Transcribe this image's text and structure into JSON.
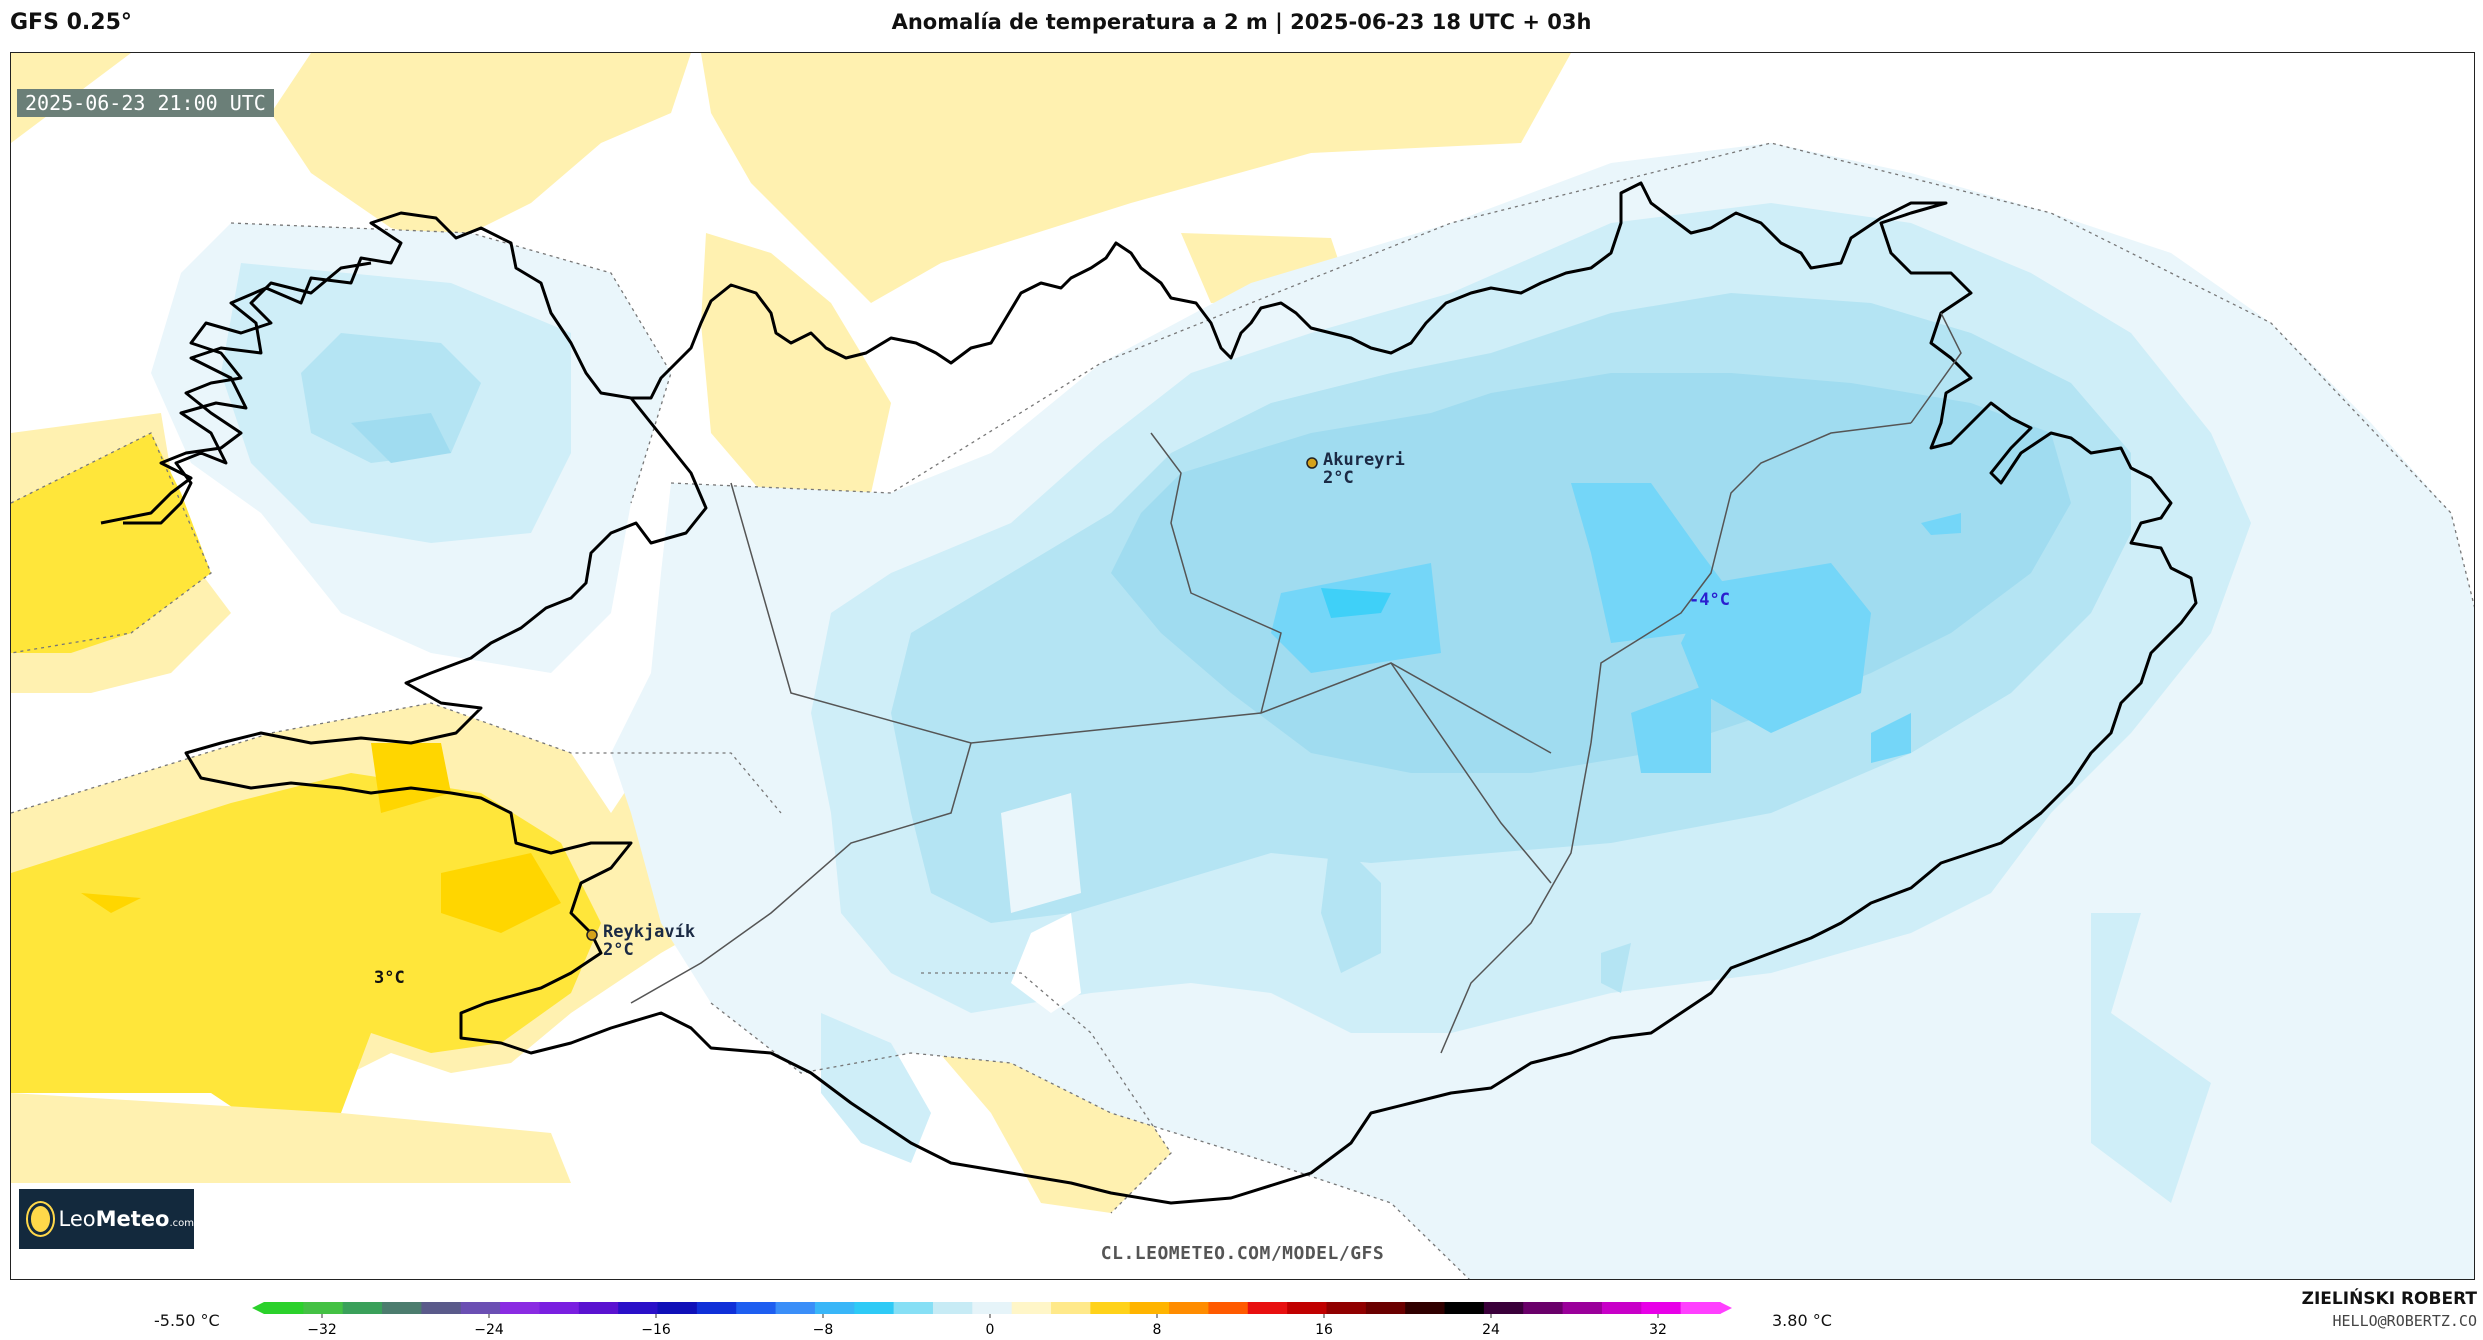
{
  "header": {
    "model": "GFS 0.25°",
    "title": "Anomalía de temperatura a 2 m | 2025-06-23 18 UTC + 03h"
  },
  "map": {
    "timestamp": "2025-06-23 21:00 UTC",
    "cities": [
      {
        "name": "Akureyri",
        "value": "2°C"
      },
      {
        "name": "Reykjavík",
        "value": "2°C"
      }
    ],
    "extremes": {
      "min_label": "-4°C",
      "max_label": "3°C"
    },
    "watermark": "CL.LEOMETEO.COM/MODEL/GFS",
    "logo": {
      "part1": "Leo",
      "part2": "Meteo",
      "suffix": ".com"
    }
  },
  "colorbar": {
    "min_label": "-5.50 °C",
    "max_label": "3.80 °C",
    "ticks": [
      "−32",
      "−24",
      "−16",
      "−8",
      "0",
      "8",
      "16",
      "24",
      "32"
    ],
    "colors": [
      "#2bd12b",
      "#44c144",
      "#3aa05a",
      "#4c7c6e",
      "#5a5a8a",
      "#6b4fb3",
      "#8a2be2",
      "#7a1fe0",
      "#5a12d0",
      "#2a10c8",
      "#1010b8",
      "#1030d8",
      "#1e5ef0",
      "#3a8ef8",
      "#39b6f8",
      "#2ecaf6",
      "#86dff5",
      "#c7ebf5",
      "#e6f4f9",
      "#fff6c8",
      "#ffe98a",
      "#ffd21a",
      "#ffb400",
      "#ff8c00",
      "#ff5a00",
      "#e81010",
      "#c00000",
      "#900000",
      "#6a0000",
      "#300000",
      "#000000",
      "#3a003a",
      "#6a006a",
      "#9a009a",
      "#c800c8",
      "#e800e8",
      "#ff40ff"
    ]
  },
  "author": {
    "name": "ZIELIŃSKI ROBERT",
    "email": "HELLO@ROBERTZ.CO"
  },
  "palette": {
    "warm1": "#fff1b0",
    "warm2": "#ffe63a",
    "warm3": "#ffd600",
    "cold1": "#eaf6fb",
    "cold2": "#cfeef8",
    "cold3": "#b4e4f3",
    "cold4": "#a0dcf0",
    "cold5": "#74d6f8",
    "cold6": "#3fd0f8"
  }
}
